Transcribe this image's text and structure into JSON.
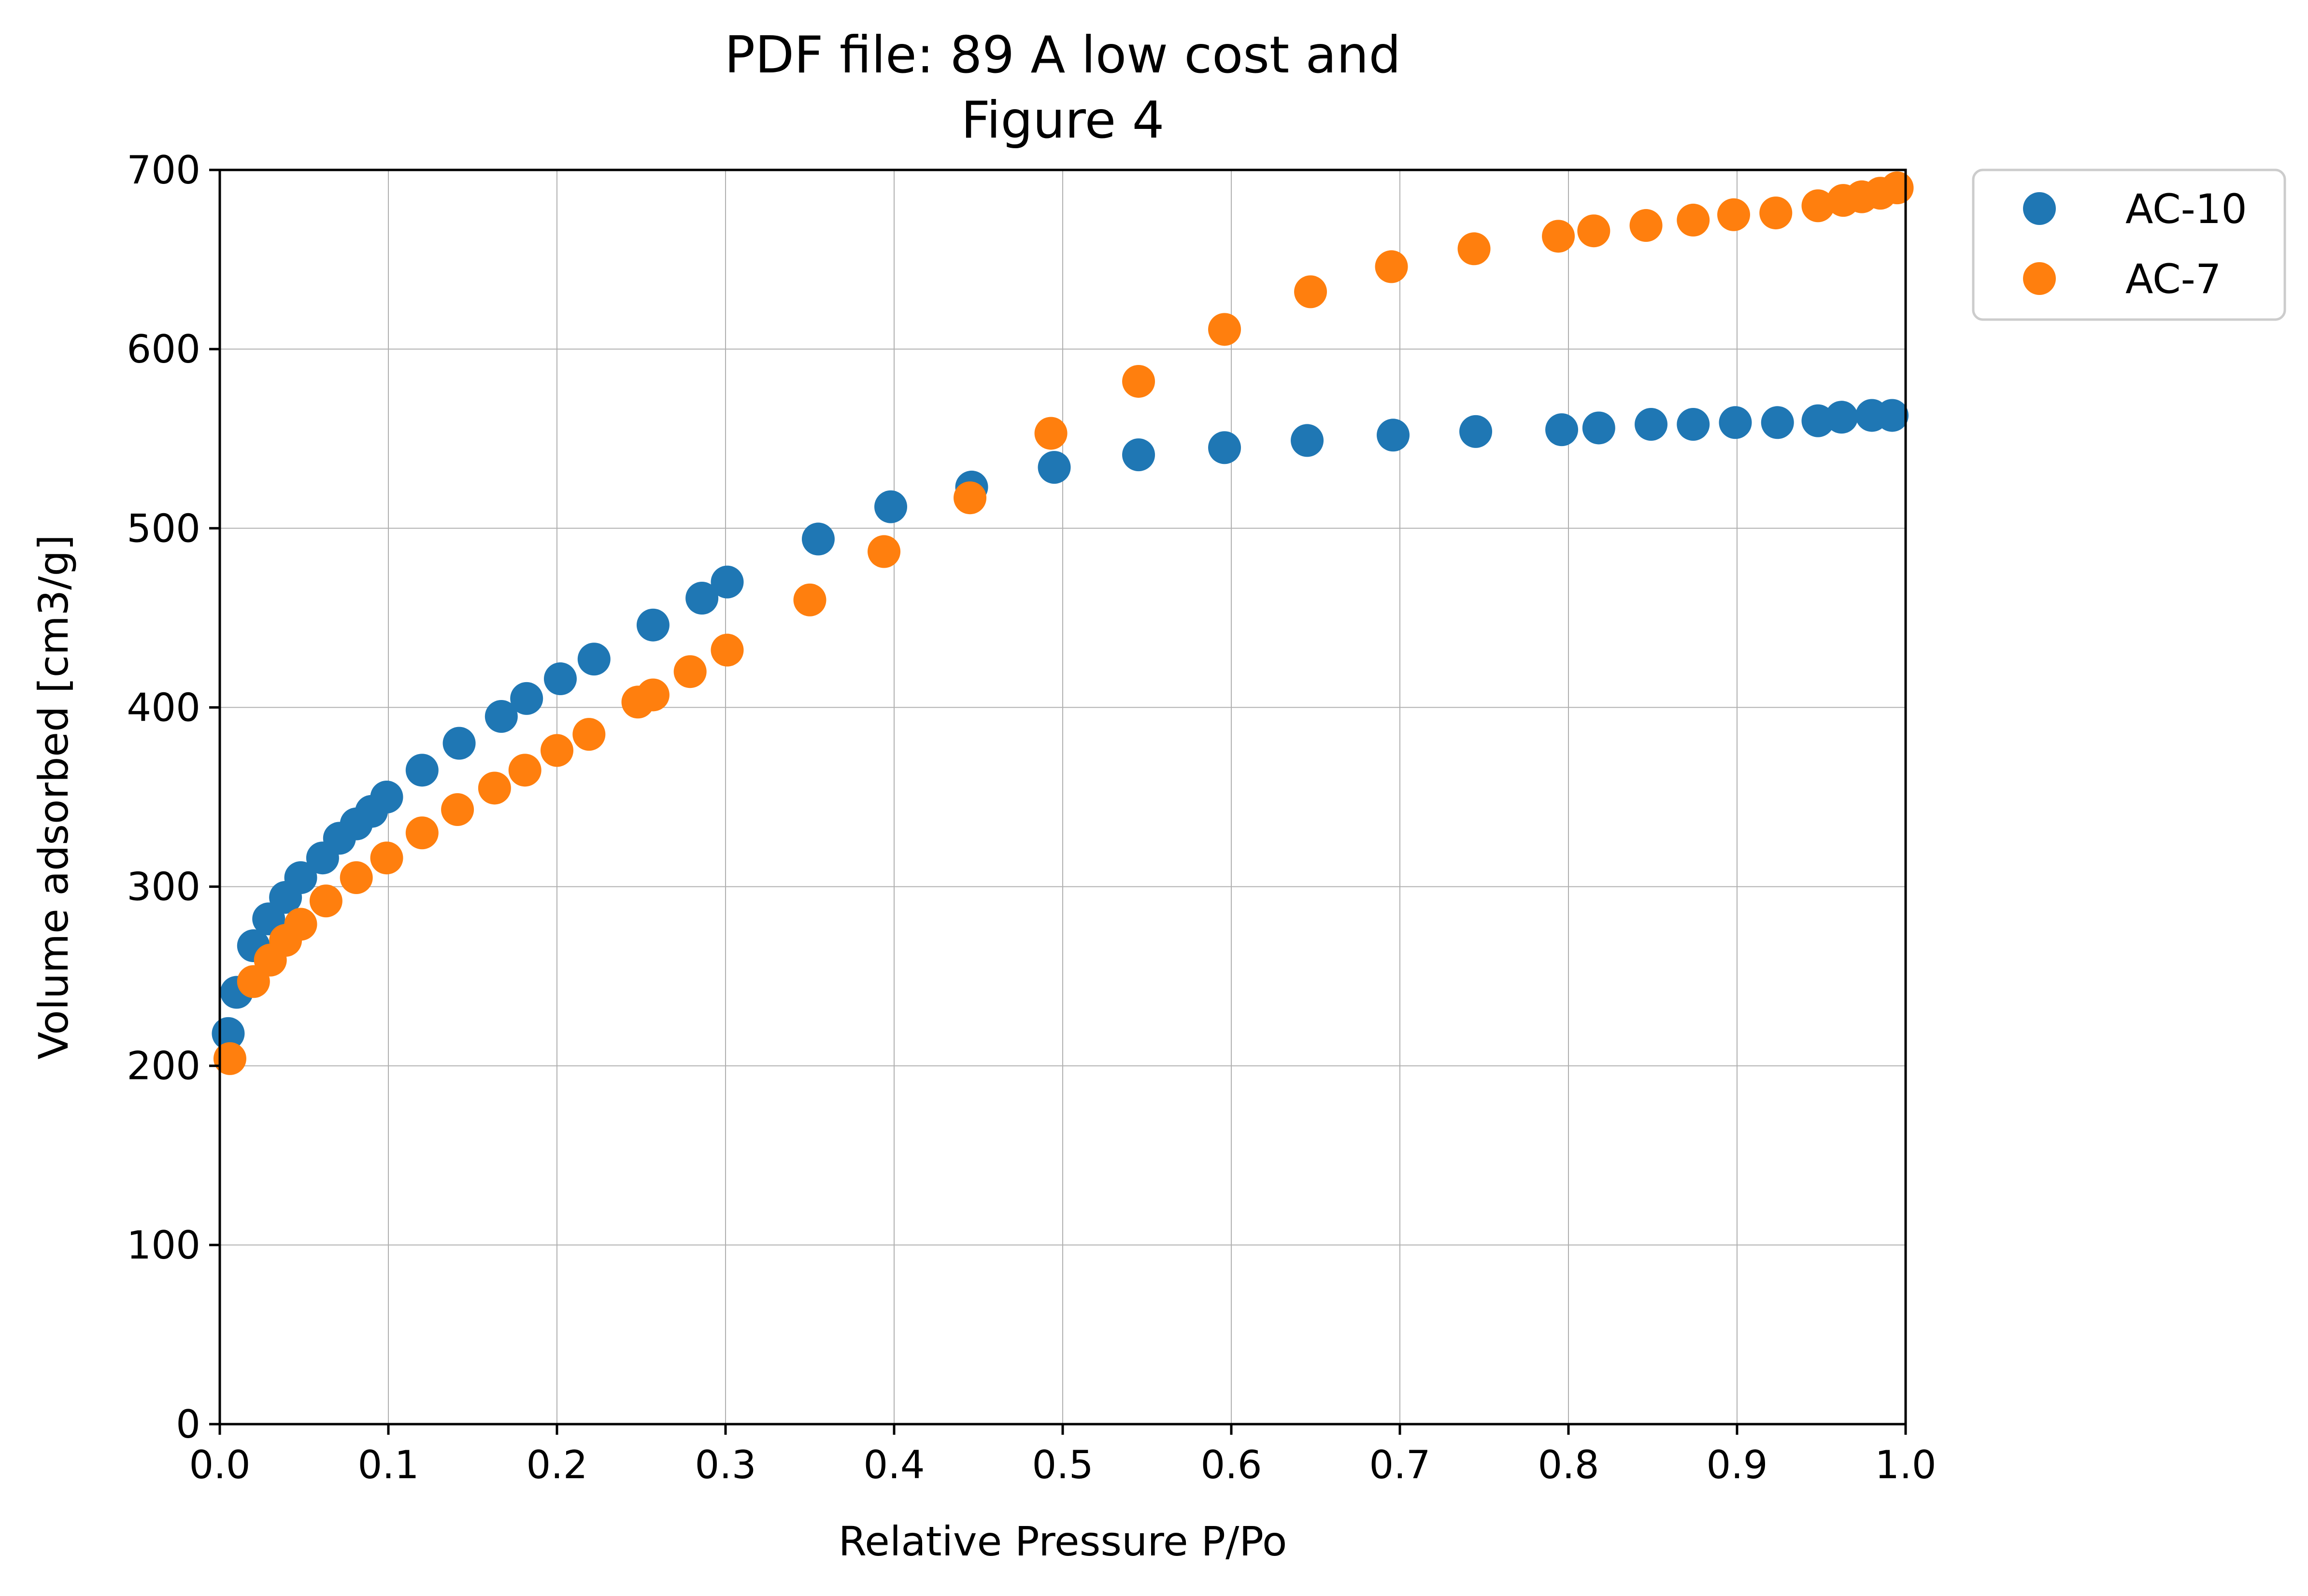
{
  "chart_data": {
    "type": "scatter",
    "title_line1": "PDF file: 89 A low cost and",
    "title_line2": "Figure 4",
    "xlabel": "Relative Pressure P/Po",
    "ylabel": "Volume adsorbed [cm3/g]",
    "xlim": [
      0.0,
      1.0
    ],
    "ylim": [
      0,
      700
    ],
    "xticks": [
      "0.0",
      "0.1",
      "0.2",
      "0.3",
      "0.4",
      "0.5",
      "0.6",
      "0.7",
      "0.8",
      "0.9",
      "1.0"
    ],
    "xtick_values": [
      0.0,
      0.1,
      0.2,
      0.3,
      0.4,
      0.5,
      0.6,
      0.7,
      0.8,
      0.9,
      1.0
    ],
    "yticks": [
      "0",
      "100",
      "200",
      "300",
      "400",
      "500",
      "600",
      "700"
    ],
    "ytick_values": [
      0,
      100,
      200,
      300,
      400,
      500,
      600,
      700
    ],
    "grid": true,
    "legend_position": "outside-top-right",
    "series": [
      {
        "name": "AC-10",
        "color": "#1f77b4",
        "points": [
          [
            0.005,
            218
          ],
          [
            0.01,
            241
          ],
          [
            0.02,
            267
          ],
          [
            0.029,
            282
          ],
          [
            0.039,
            294
          ],
          [
            0.048,
            305
          ],
          [
            0.061,
            316
          ],
          [
            0.071,
            327
          ],
          [
            0.081,
            335
          ],
          [
            0.09,
            342
          ],
          [
            0.099,
            350
          ],
          [
            0.12,
            365
          ],
          [
            0.142,
            380
          ],
          [
            0.167,
            395
          ],
          [
            0.182,
            405
          ],
          [
            0.202,
            416
          ],
          [
            0.222,
            427
          ],
          [
            0.257,
            446
          ],
          [
            0.286,
            461
          ],
          [
            0.301,
            470
          ],
          [
            0.355,
            494
          ],
          [
            0.398,
            512
          ],
          [
            0.446,
            523
          ],
          [
            0.495,
            534
          ],
          [
            0.545,
            541
          ],
          [
            0.596,
            545
          ],
          [
            0.645,
            549
          ],
          [
            0.696,
            552
          ],
          [
            0.745,
            554
          ],
          [
            0.796,
            555
          ],
          [
            0.818,
            556
          ],
          [
            0.849,
            558
          ],
          [
            0.874,
            558
          ],
          [
            0.899,
            559
          ],
          [
            0.924,
            559
          ],
          [
            0.948,
            560
          ],
          [
            0.962,
            562
          ],
          [
            0.98,
            563
          ],
          [
            0.992,
            563
          ]
        ]
      },
      {
        "name": "AC-7",
        "color": "#ff7f0e",
        "points": [
          [
            0.006,
            204
          ],
          [
            0.02,
            247
          ],
          [
            0.03,
            259
          ],
          [
            0.039,
            270
          ],
          [
            0.048,
            279
          ],
          [
            0.063,
            292
          ],
          [
            0.081,
            305
          ],
          [
            0.099,
            316
          ],
          [
            0.12,
            330
          ],
          [
            0.141,
            343
          ],
          [
            0.163,
            355
          ],
          [
            0.181,
            365
          ],
          [
            0.2,
            376
          ],
          [
            0.219,
            385
          ],
          [
            0.248,
            403
          ],
          [
            0.257,
            407
          ],
          [
            0.279,
            420
          ],
          [
            0.301,
            432
          ],
          [
            0.35,
            460
          ],
          [
            0.394,
            487
          ],
          [
            0.445,
            517
          ],
          [
            0.493,
            553
          ],
          [
            0.545,
            582
          ],
          [
            0.596,
            611
          ],
          [
            0.647,
            632
          ],
          [
            0.695,
            646
          ],
          [
            0.744,
            656
          ],
          [
            0.794,
            663
          ],
          [
            0.815,
            666
          ],
          [
            0.846,
            669
          ],
          [
            0.874,
            672
          ],
          [
            0.898,
            675
          ],
          [
            0.923,
            676
          ],
          [
            0.948,
            680
          ],
          [
            0.963,
            683
          ],
          [
            0.974,
            685
          ],
          [
            0.985,
            687
          ],
          [
            0.995,
            690
          ]
        ]
      }
    ]
  }
}
